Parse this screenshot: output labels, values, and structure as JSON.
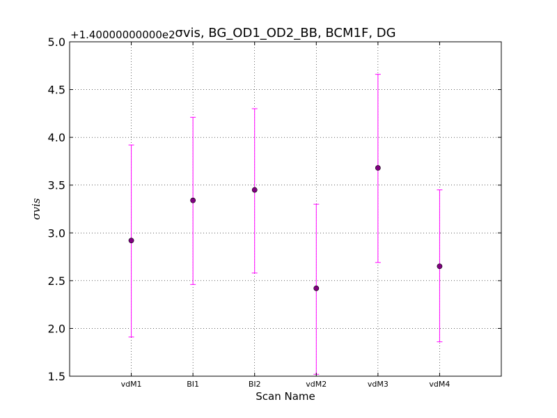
{
  "chart_data": {
    "type": "scatter",
    "title": "σvis, BG_OD1_OD2_BB, BCM1F, DG",
    "offset_text": "+1.40000000000e2",
    "xlabel": "Scan Name",
    "ylabel": "σvis",
    "categories": [
      "vdM1",
      "BI1",
      "BI2",
      "vdM2",
      "vdM3",
      "vdM4"
    ],
    "series": [
      {
        "values": [
          2.92,
          3.34,
          3.45,
          2.42,
          3.68,
          2.65
        ],
        "err_low": [
          1.91,
          2.46,
          2.58,
          1.52,
          2.69,
          1.86
        ],
        "err_high": [
          3.92,
          4.21,
          4.3,
          3.3,
          4.66,
          3.45
        ],
        "color": "#800080",
        "errorbar_color": "#ff00ff"
      }
    ],
    "ylim": [
      1.5,
      5.0
    ],
    "yticks": [
      "1.5",
      "2.0",
      "2.5",
      "3.0",
      "3.5",
      "4.0",
      "4.5",
      "5.0"
    ],
    "grid": true
  }
}
